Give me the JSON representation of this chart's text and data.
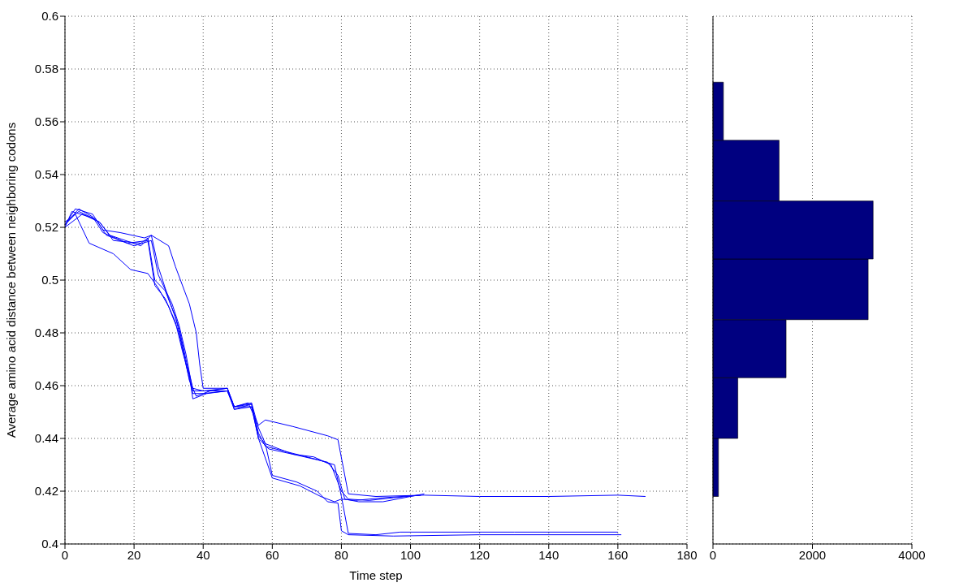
{
  "chart_data": [
    {
      "type": "line",
      "xlabel": "Time step",
      "ylabel": "Average amino acid distance between neighboring codons",
      "xlim": [
        0,
        180
      ],
      "xticks": [
        0,
        20,
        40,
        60,
        80,
        100,
        120,
        140,
        160,
        180
      ],
      "ylim": [
        0.4,
        0.6
      ],
      "yticks": [
        0.4,
        0.42,
        0.44,
        0.46,
        0.48,
        0.5,
        0.52,
        0.54,
        0.56,
        0.58,
        0.6
      ],
      "grid": true,
      "series": [
        {
          "color": "#0000ff",
          "x": [
            0,
            3,
            8,
            11,
            16,
            23,
            25,
            27,
            30,
            33,
            35,
            37,
            40,
            47,
            49,
            53,
            56,
            58,
            66,
            76,
            79,
            82,
            90,
            104,
            120,
            140,
            160,
            168
          ],
          "values": [
            0.521,
            0.527,
            0.525,
            0.519,
            0.518,
            0.516,
            0.517,
            0.505,
            0.493,
            0.482,
            0.47,
            0.459,
            0.458,
            0.459,
            0.452,
            0.4535,
            0.445,
            0.447,
            0.4445,
            0.441,
            0.4395,
            0.419,
            0.418,
            0.4185,
            0.418,
            0.418,
            0.4185,
            0.418
          ]
        },
        {
          "color": "#0000ff",
          "x": [
            0,
            2,
            7,
            10,
            14,
            22,
            24,
            26,
            29,
            32,
            34,
            36,
            38,
            42,
            47,
            49,
            54,
            56,
            59,
            66,
            72,
            77,
            80,
            82,
            88,
            95,
            103
          ],
          "values": [
            0.52,
            0.526,
            0.524,
            0.522,
            0.515,
            0.514,
            0.516,
            0.5,
            0.496,
            0.486,
            0.475,
            0.462,
            0.456,
            0.458,
            0.459,
            0.451,
            0.452,
            0.44,
            0.436,
            0.434,
            0.433,
            0.43,
            0.42,
            0.417,
            0.4165,
            0.4175,
            0.4185
          ]
        },
        {
          "color": "#0000ff",
          "x": [
            0,
            4,
            9,
            12,
            20,
            25,
            27,
            31,
            33,
            35,
            37,
            41,
            47,
            49,
            54,
            56,
            58,
            64,
            73,
            78,
            80,
            82,
            90,
            97,
            100,
            130,
            160
          ],
          "values": [
            0.522,
            0.526,
            0.523,
            0.517,
            0.513,
            0.515,
            0.502,
            0.491,
            0.483,
            0.472,
            0.458,
            0.458,
            0.458,
            0.452,
            0.453,
            0.442,
            0.437,
            0.435,
            0.432,
            0.43,
            0.418,
            0.404,
            0.4035,
            0.4045,
            0.4045,
            0.4045,
            0.4045
          ]
        },
        {
          "color": "#0000ff",
          "x": [
            0,
            3,
            7,
            14,
            19,
            24,
            27,
            30,
            33,
            35,
            37,
            40,
            47,
            49,
            54,
            56,
            58,
            60,
            67,
            73,
            76,
            79,
            80,
            82,
            95,
            120,
            161
          ],
          "values": [
            0.521,
            0.525,
            0.514,
            0.51,
            0.504,
            0.5025,
            0.497,
            0.49,
            0.48,
            0.468,
            0.457,
            0.457,
            0.458,
            0.451,
            0.453,
            0.441,
            0.438,
            0.426,
            0.4235,
            0.42,
            0.416,
            0.4155,
            0.405,
            0.4035,
            0.403,
            0.4035,
            0.4035
          ]
        },
        {
          "color": "#0000ff",
          "x": [
            0,
            5,
            10,
            13,
            22,
            25,
            30,
            32,
            36,
            38,
            39,
            40,
            47,
            49,
            54,
            56,
            58,
            66,
            76,
            79,
            81,
            85,
            92,
            104
          ],
          "values": [
            0.52,
            0.525,
            0.522,
            0.517,
            0.513,
            0.517,
            0.513,
            0.505,
            0.491,
            0.48,
            0.468,
            0.459,
            0.459,
            0.452,
            0.4535,
            0.444,
            0.438,
            0.434,
            0.431,
            0.426,
            0.417,
            0.416,
            0.416,
            0.419
          ]
        },
        {
          "color": "#0000ff",
          "x": [
            0,
            4,
            8,
            11,
            18,
            24,
            26,
            29,
            32,
            34,
            36,
            37,
            41,
            47,
            49,
            54,
            56,
            60,
            68,
            74,
            78,
            80,
            84,
            92,
            103
          ],
          "values": [
            0.521,
            0.527,
            0.524,
            0.518,
            0.514,
            0.515,
            0.498,
            0.493,
            0.484,
            0.473,
            0.464,
            0.455,
            0.457,
            0.458,
            0.452,
            0.452,
            0.44,
            0.425,
            0.422,
            0.418,
            0.416,
            0.417,
            0.4165,
            0.4175,
            0.4185
          ]
        }
      ]
    },
    {
      "type": "histogram",
      "orientation": "horizontal",
      "bins": [
        0.418,
        0.44,
        0.463,
        0.485,
        0.508,
        0.53,
        0.553,
        0.575
      ],
      "values": [
        110,
        500,
        1470,
        3120,
        3220,
        1330,
        210
      ],
      "color": "#000080",
      "xlim": [
        0,
        4000
      ],
      "xticks": [
        0,
        2000,
        4000
      ],
      "ylim": [
        0.4,
        0.6
      ],
      "yticks": [
        0.4,
        0.42,
        0.44,
        0.46,
        0.48,
        0.5,
        0.52,
        0.54,
        0.56,
        0.58,
        0.6
      ],
      "tick_labels": "x",
      "grid": true
    }
  ]
}
